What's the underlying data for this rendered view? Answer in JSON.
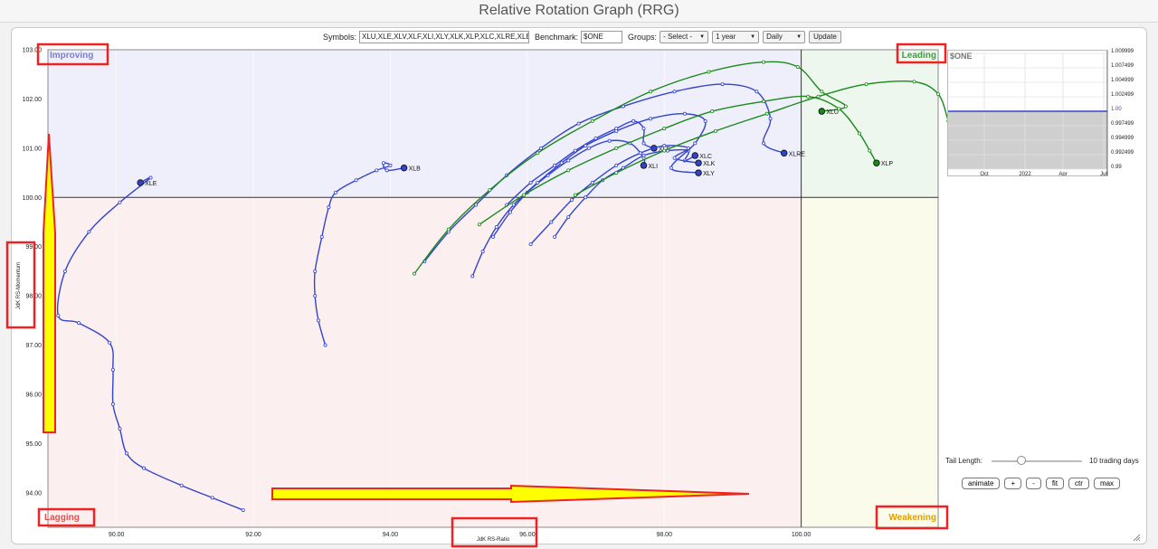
{
  "title": "Relative Rotation Graph (RRG)",
  "controls": {
    "symbols_label": "Symbols:",
    "symbols_value": "XLU,XLE,XLV,XLF,XLI,XLY,XLK,XLP,XLC,XLRE,XLB",
    "benchmark_label": "Benchmark:",
    "benchmark_value": "$ONE",
    "groups_label": "Groups:",
    "groups_value": "- Select -",
    "period_value": "1 year",
    "frequency_value": "Daily",
    "update_label": "Update"
  },
  "chart_data": {
    "type": "scatter",
    "title": "",
    "xlabel": "JdK RS-Ratio",
    "ylabel": "JdK RS-Momentum",
    "xlim": [
      89.0,
      102.0
    ],
    "ylim": [
      93.3,
      103.0
    ],
    "x_ticks": [
      "90.00",
      "92.00",
      "94.00",
      "96.00",
      "98.00",
      "100.00"
    ],
    "y_ticks": [
      "103.00",
      "102.00",
      "101.00",
      "100.00",
      "99.00",
      "98.00",
      "97.00",
      "96.00",
      "95.00",
      "94.00"
    ],
    "center": [
      100,
      100
    ],
    "quadrants": [
      {
        "name": "Improving",
        "color": "#7b7bd6",
        "fill": "#efeffb"
      },
      {
        "name": "Leading",
        "color": "#3aa03a",
        "fill": "#eef7ee"
      },
      {
        "name": "Weakening",
        "color": "#e0a000",
        "fill": "#fbfbec"
      },
      {
        "name": "Lagging",
        "color": "#e05050",
        "fill": "#fbefef"
      }
    ],
    "series": [
      {
        "name": "XLE",
        "color": "#3344cc",
        "points": [
          [
            91.85,
            93.65
          ],
          [
            91.4,
            93.9
          ],
          [
            90.95,
            94.15
          ],
          [
            90.4,
            94.5
          ],
          [
            90.15,
            94.8
          ],
          [
            90.05,
            95.3
          ],
          [
            89.95,
            95.8
          ],
          [
            89.95,
            96.5
          ],
          [
            89.9,
            97.05
          ],
          [
            89.45,
            97.45
          ],
          [
            89.15,
            97.6
          ],
          [
            89.25,
            98.5
          ],
          [
            89.6,
            99.3
          ],
          [
            90.05,
            99.9
          ],
          [
            90.5,
            100.4
          ],
          [
            90.35,
            100.3
          ]
        ]
      },
      {
        "name": "XLB",
        "color": "#3344cc",
        "points": [
          [
            93.05,
            97.0
          ],
          [
            92.95,
            97.5
          ],
          [
            92.9,
            98.0
          ],
          [
            92.9,
            98.5
          ],
          [
            93.0,
            99.2
          ],
          [
            93.1,
            99.8
          ],
          [
            93.2,
            100.1
          ],
          [
            93.5,
            100.35
          ],
          [
            93.8,
            100.55
          ],
          [
            94.0,
            100.65
          ],
          [
            93.9,
            100.7
          ],
          [
            93.95,
            100.55
          ],
          [
            94.2,
            100.6
          ]
        ]
      },
      {
        "name": "XLF",
        "color": "#3344cc",
        "points": [
          [
            95.7,
            99.85
          ],
          [
            96.05,
            100.3
          ],
          [
            96.4,
            100.65
          ],
          [
            96.7,
            100.95
          ],
          [
            97.0,
            101.2
          ],
          [
            97.3,
            101.4
          ],
          [
            97.55,
            101.55
          ],
          [
            97.7,
            101.4
          ],
          [
            97.7,
            101.1
          ],
          [
            97.85,
            101.0
          ]
        ]
      },
      {
        "name": "XLI",
        "color": "#3344cc",
        "points": [
          [
            95.5,
            99.2
          ],
          [
            95.75,
            99.7
          ],
          [
            96.0,
            100.1
          ],
          [
            96.3,
            100.45
          ],
          [
            96.6,
            100.75
          ],
          [
            96.9,
            101.0
          ],
          [
            97.2,
            101.15
          ],
          [
            97.5,
            101.1
          ],
          [
            97.7,
            100.8
          ],
          [
            97.7,
            100.65
          ]
        ]
      },
      {
        "name": "XLC",
        "color": "#3344cc",
        "points": [
          [
            96.4,
            99.2
          ],
          [
            96.6,
            99.6
          ],
          [
            96.85,
            100.0
          ],
          [
            97.1,
            100.35
          ],
          [
            97.4,
            100.6
          ],
          [
            97.7,
            100.85
          ],
          [
            98.05,
            100.95
          ],
          [
            98.35,
            100.95
          ],
          [
            98.3,
            100.75
          ],
          [
            98.45,
            100.85
          ]
        ]
      },
      {
        "name": "XLK",
        "color": "#3344cc",
        "points": [
          [
            96.05,
            99.05
          ],
          [
            96.35,
            99.5
          ],
          [
            96.65,
            99.95
          ],
          [
            96.95,
            100.3
          ],
          [
            97.3,
            100.65
          ],
          [
            97.65,
            100.9
          ],
          [
            98.0,
            101.05
          ],
          [
            98.35,
            101.0
          ],
          [
            98.15,
            100.8
          ],
          [
            98.5,
            100.7
          ]
        ]
      },
      {
        "name": "XLY",
        "color": "#3344cc",
        "points": [
          [
            95.2,
            98.4
          ],
          [
            95.35,
            98.9
          ],
          [
            95.55,
            99.4
          ],
          [
            95.8,
            99.85
          ],
          [
            96.15,
            100.3
          ],
          [
            96.5,
            100.7
          ],
          [
            96.85,
            101.05
          ],
          [
            97.3,
            101.35
          ],
          [
            97.8,
            101.6
          ],
          [
            98.3,
            101.7
          ],
          [
            98.6,
            101.55
          ],
          [
            98.45,
            101.1
          ],
          [
            98.1,
            100.6
          ],
          [
            98.5,
            100.5
          ]
        ]
      },
      {
        "name": "XLRE",
        "color": "#3344cc",
        "points": [
          [
            94.5,
            98.7
          ],
          [
            94.85,
            99.3
          ],
          [
            95.25,
            99.85
          ],
          [
            95.7,
            100.45
          ],
          [
            96.2,
            101.0
          ],
          [
            96.75,
            101.5
          ],
          [
            97.4,
            101.85
          ],
          [
            98.15,
            102.15
          ],
          [
            98.85,
            102.3
          ],
          [
            99.35,
            102.15
          ],
          [
            99.55,
            101.6
          ],
          [
            99.45,
            101.1
          ],
          [
            99.75,
            100.9
          ]
        ]
      },
      {
        "name": "XLU",
        "color": "#1a8a1a",
        "points": [
          [
            94.35,
            98.45
          ],
          [
            94.85,
            99.35
          ],
          [
            95.45,
            100.15
          ],
          [
            96.15,
            100.9
          ],
          [
            96.95,
            101.55
          ],
          [
            97.8,
            102.15
          ],
          [
            98.65,
            102.55
          ],
          [
            99.45,
            102.75
          ],
          [
            99.95,
            102.65
          ],
          [
            100.3,
            102.15
          ],
          [
            100.65,
            101.85
          ],
          [
            100.3,
            101.75
          ]
        ]
      },
      {
        "name": "XLV",
        "color": "#1a8a1a",
        "points": [
          [
            96.7,
            100.05
          ],
          [
            97.3,
            100.5
          ],
          [
            98.0,
            100.95
          ],
          [
            98.75,
            101.35
          ],
          [
            99.5,
            101.7
          ],
          [
            100.25,
            102.05
          ],
          [
            100.95,
            102.3
          ],
          [
            101.65,
            102.35
          ],
          [
            102.0,
            102.1
          ],
          [
            102.15,
            101.55
          ],
          [
            102.25,
            101.2
          ],
          [
            102.45,
            101.0
          ]
        ]
      },
      {
        "name": "XLP",
        "color": "#1a8a1a",
        "points": [
          [
            95.3,
            99.45
          ],
          [
            95.95,
            100.05
          ],
          [
            96.6,
            100.55
          ],
          [
            97.3,
            101.0
          ],
          [
            98.0,
            101.4
          ],
          [
            98.7,
            101.75
          ],
          [
            99.45,
            101.95
          ],
          [
            100.1,
            102.05
          ],
          [
            100.55,
            101.8
          ],
          [
            100.85,
            101.3
          ],
          [
            101.0,
            100.95
          ],
          [
            101.1,
            100.7
          ]
        ]
      }
    ]
  },
  "annotations": {
    "quadrant_labels": [
      "Improving",
      "Leading",
      "Lagging",
      "Weakening"
    ],
    "highlight_color": "#ee2222",
    "arrow_fill": "#ffff00"
  },
  "benchmark_panel": {
    "title": "$ONE",
    "y_ticks": [
      "1.009999",
      "1.007499",
      "1.004999",
      "1.002499",
      "1.00",
      "0.997499",
      "0.994999",
      "0.992499",
      "0.99"
    ],
    "x_ticks": [
      "Oct",
      "2022",
      "Apr",
      "Jul"
    ],
    "value": 1.0
  },
  "tail_length": {
    "label": "Tail Length:",
    "value_text": "10 trading days",
    "value": 10
  },
  "buttons": {
    "animate": "animate",
    "plus": "+",
    "minus": "-",
    "fit": "fit",
    "ctr": "ctr",
    "max": "max"
  }
}
